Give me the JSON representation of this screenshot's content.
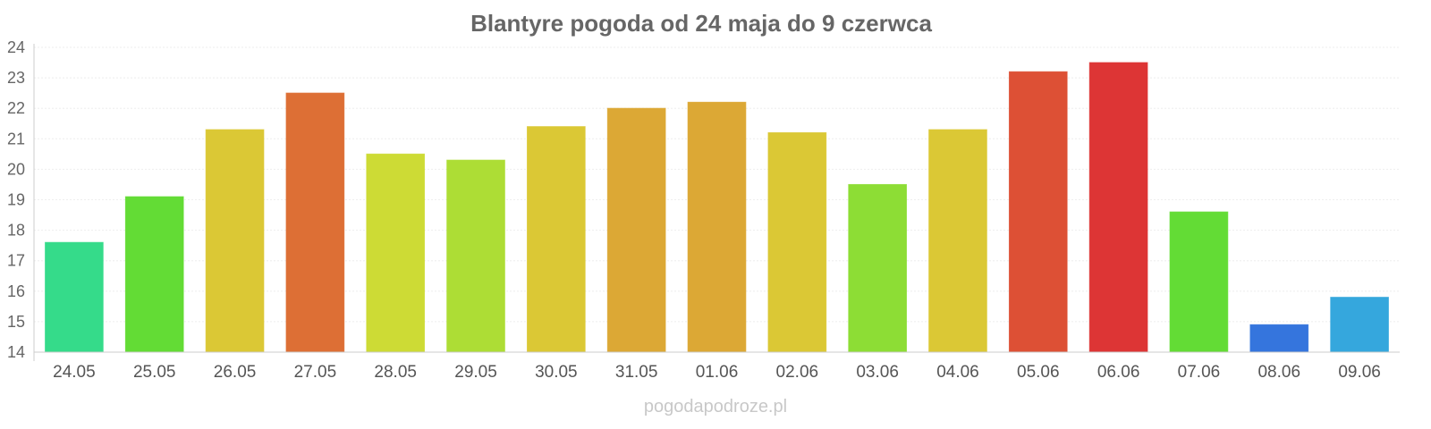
{
  "chart_data": {
    "type": "bar",
    "title": "Blantyre pogoda od 24 maja do 9 czerwca",
    "categories": [
      "24.05",
      "25.05",
      "26.05",
      "27.05",
      "28.05",
      "29.05",
      "30.05",
      "31.05",
      "01.06",
      "02.06",
      "03.06",
      "04.06",
      "05.06",
      "06.06",
      "07.06",
      "08.06",
      "09.06"
    ],
    "values": [
      17.6,
      19.1,
      21.3,
      22.5,
      20.5,
      20.3,
      21.4,
      22.0,
      22.2,
      21.2,
      19.5,
      21.3,
      23.2,
      23.5,
      18.6,
      14.9,
      15.8
    ],
    "colors": [
      "#35db8a",
      "#63dc35",
      "#dbc835",
      "#dd6f35",
      "#cddb35",
      "#addd35",
      "#dbc835",
      "#dca835",
      "#dca835",
      "#dbc835",
      "#8ddd35",
      "#dbc835",
      "#dd5035",
      "#dd3535",
      "#63dc35",
      "#3575dd",
      "#35a7dd"
    ],
    "ylim": [
      14,
      24
    ],
    "yticks": [
      14,
      15,
      16,
      17,
      18,
      19,
      20,
      21,
      22,
      23,
      24
    ],
    "xlabel": "",
    "ylabel": "",
    "grid": true,
    "legend": "none"
  },
  "source_label": "pogodapodroze.pl"
}
